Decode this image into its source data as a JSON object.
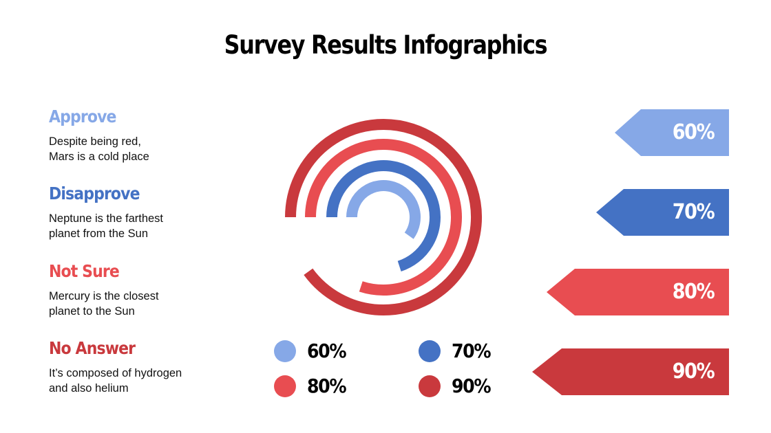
{
  "title": "Survey Results Infographics",
  "categories": [
    {
      "label": "Approve",
      "description": "Despite being red,\nMars is a cold place",
      "color": "#86a8e7"
    },
    {
      "label": "Disapprove",
      "description": "Neptune is the farthest\nplanet from the Sun",
      "color": "#4472c4"
    },
    {
      "label": "Not Sure",
      "description": "Mercury is the closest\nplanet to the Sun",
      "color": "#e84d51"
    },
    {
      "label": "No Answer",
      "description": "It’s composed of hydrogen\nand also helium",
      "color": "#c9393d"
    }
  ],
  "legend": [
    {
      "label": "60%",
      "color": "#86a8e7"
    },
    {
      "label": "70%",
      "color": "#4472c4"
    },
    {
      "label": "80%",
      "color": "#e84d51"
    },
    {
      "label": "90%",
      "color": "#c9393d"
    }
  ],
  "tags": [
    {
      "label": "60%",
      "color": "#86a8e7"
    },
    {
      "label": "70%",
      "color": "#4472c4"
    },
    {
      "label": "80%",
      "color": "#e84d51"
    },
    {
      "label": "90%",
      "color": "#c9393d"
    }
  ],
  "chart_data": {
    "type": "radial-bar",
    "title": "Survey Results Infographics",
    "categories": [
      "Approve",
      "Disapprove",
      "Not Sure",
      "No Answer"
    ],
    "values": [
      60,
      70,
      80,
      90
    ],
    "unit": "%",
    "max": 100,
    "colors": [
      "#86a8e7",
      "#4472c4",
      "#e84d51",
      "#c9393d"
    ],
    "legend": [
      "60%",
      "70%",
      "80%",
      "90%"
    ]
  }
}
